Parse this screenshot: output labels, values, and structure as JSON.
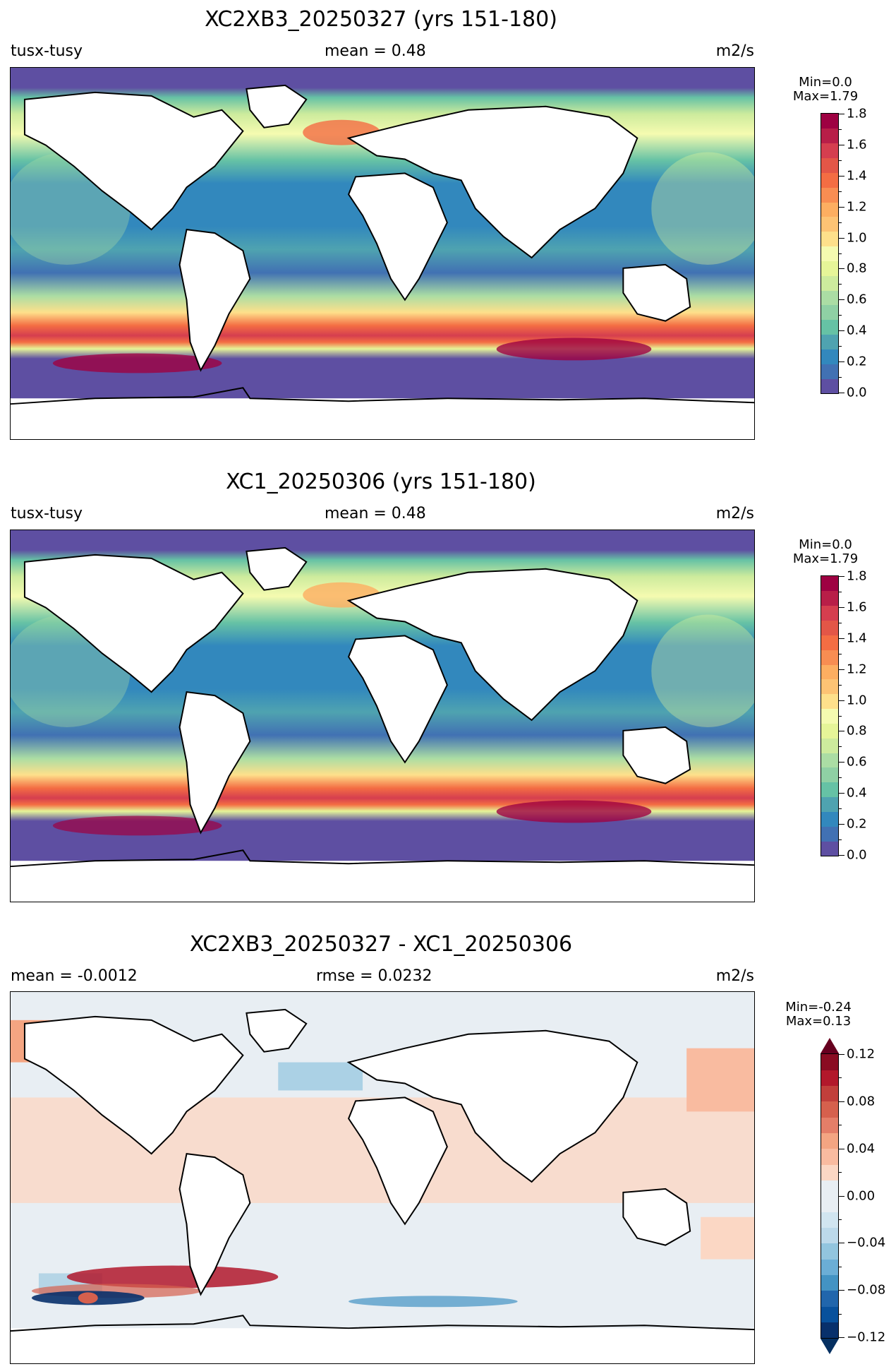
{
  "panels": [
    {
      "title": "XC2XB3_20250327 (yrs 151-180)",
      "left_label": "tusx-tusy",
      "center_label": "mean = 0.48",
      "right_label": "m2/s",
      "min_text": "Min=0.0",
      "max_text": "Max=1.79",
      "colormap": "Spectral_r",
      "colorbar": {
        "ticks": [
          "0.0",
          "0.2",
          "0.4",
          "0.6",
          "0.8",
          "1.0",
          "1.2",
          "1.4",
          "1.6",
          "1.8"
        ],
        "colors": [
          "#5e4fa2",
          "#4171b3",
          "#3288bd",
          "#4fa3b0",
          "#66c2a5",
          "#8fd0a4",
          "#abdda4",
          "#cdeb9d",
          "#e6f598",
          "#f5fbb0",
          "#fee08b",
          "#fdc374",
          "#fdae61",
          "#f88d52",
          "#f46d43",
          "#e35647",
          "#d53e4f",
          "#b81e48",
          "#9e0142"
        ]
      }
    },
    {
      "title": "XC1_20250306 (yrs 151-180)",
      "left_label": "tusx-tusy",
      "center_label": "mean = 0.48",
      "right_label": "m2/s",
      "min_text": "Min=0.0",
      "max_text": "Max=1.79",
      "colormap": "Spectral_r",
      "colorbar": {
        "ticks": [
          "0.0",
          "0.2",
          "0.4",
          "0.6",
          "0.8",
          "1.0",
          "1.2",
          "1.4",
          "1.6",
          "1.8"
        ],
        "colors": [
          "#5e4fa2",
          "#4171b3",
          "#3288bd",
          "#4fa3b0",
          "#66c2a5",
          "#8fd0a4",
          "#abdda4",
          "#cdeb9d",
          "#e6f598",
          "#f5fbb0",
          "#fee08b",
          "#fdc374",
          "#fdae61",
          "#f88d52",
          "#f46d43",
          "#e35647",
          "#d53e4f",
          "#b81e48",
          "#9e0142"
        ]
      }
    },
    {
      "title": "XC2XB3_20250327 - XC1_20250306",
      "left_label": "mean = -0.0012",
      "center_label": "rmse = 0.0232",
      "right_label": "m2/s",
      "min_text": "Min=-0.24",
      "max_text": "Max=0.13",
      "colormap": "RdBu_r",
      "colorbar": {
        "ticks": [
          "0.12",
          "0.08",
          "0.04",
          "0.00",
          "−0.04",
          "−0.08",
          "−0.12"
        ],
        "colors": [
          "#08306b",
          "#08519c",
          "#2166ac",
          "#4393c3",
          "#6baed6",
          "#92c5de",
          "#bcd9ea",
          "#d1e5f0",
          "#e8eef3",
          "#e8eef3",
          "#fbd7c4",
          "#f9bba0",
          "#f4a582",
          "#e47e68",
          "#d6604d",
          "#c13f3b",
          "#b2182b",
          "#8a0c22"
        ],
        "under_color": "#053061",
        "over_color": "#67001f"
      }
    }
  ],
  "colors": {
    "land": "#ffffff",
    "coast": "#000000",
    "sea_ice": "#5e4fa2"
  }
}
